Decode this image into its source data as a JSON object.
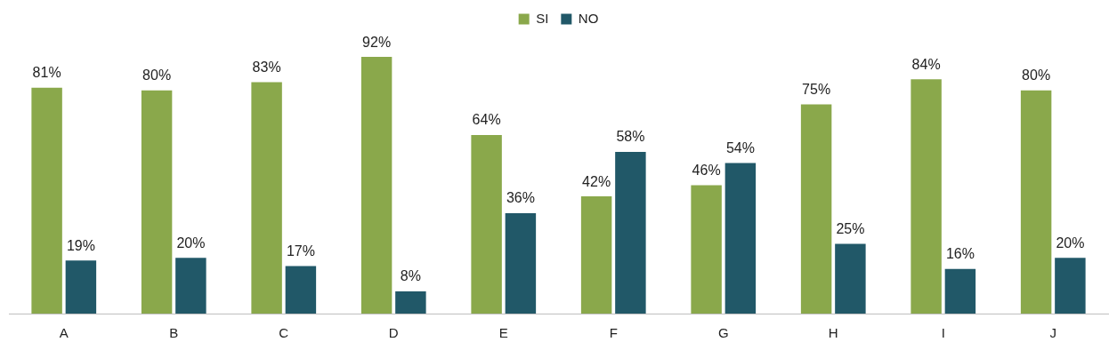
{
  "chart_data": {
    "type": "bar",
    "categories": [
      "A",
      "B",
      "C",
      "D",
      "E",
      "F",
      "G",
      "H",
      "I",
      "J"
    ],
    "series": [
      {
        "name": "SI",
        "color": "#8aa84b",
        "values": [
          81,
          80,
          83,
          92,
          64,
          42,
          46,
          75,
          84,
          80
        ],
        "value_labels": [
          "81%",
          "80%",
          "83%",
          "92%",
          "64%",
          "42%",
          "46%",
          "75%",
          "84%",
          "80%"
        ]
      },
      {
        "name": "NO",
        "color": "#215868",
        "values": [
          19,
          20,
          17,
          8,
          36,
          58,
          54,
          25,
          16,
          20
        ],
        "value_labels": [
          "19%",
          "20%",
          "17%",
          "8%",
          "36%",
          "58%",
          "54%",
          "25%",
          "16%",
          "20%"
        ]
      }
    ],
    "tick_labels": "x",
    "grid": false,
    "legend": "top"
  }
}
